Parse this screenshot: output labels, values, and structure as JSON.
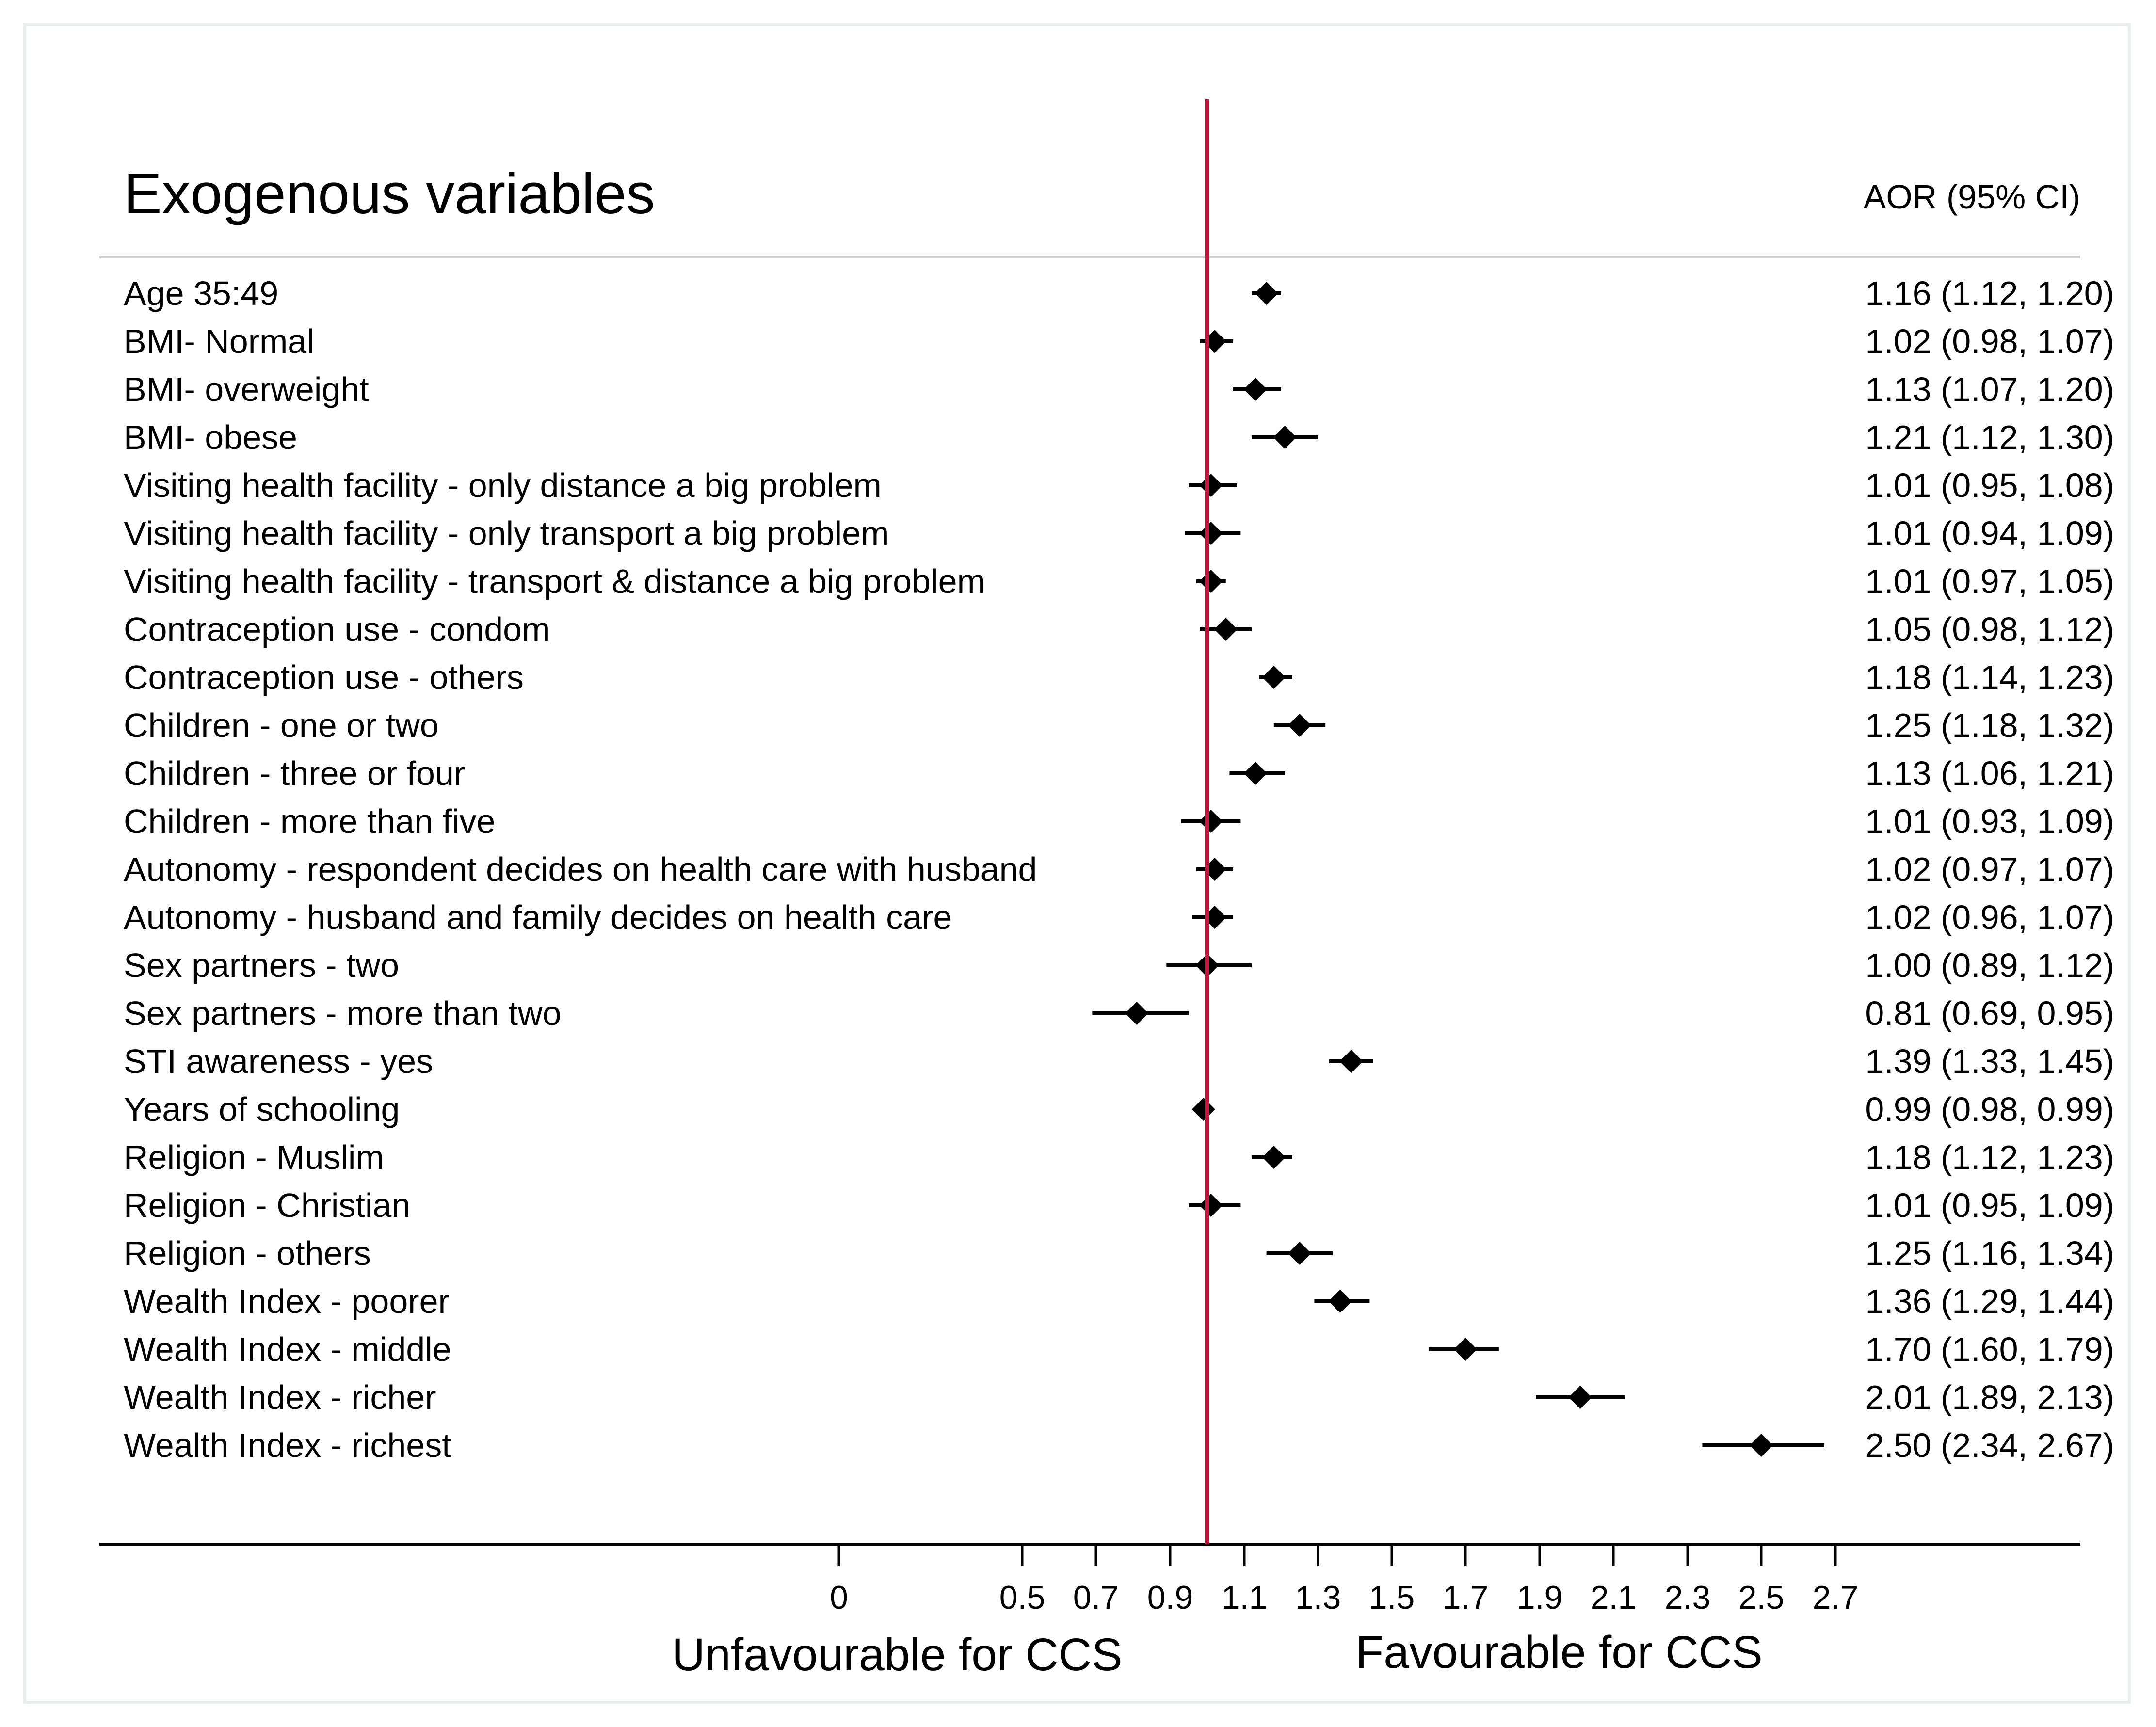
{
  "chart_data": {
    "type": "forest",
    "title": "Exogenous variables",
    "ci_header": "AOR (95% CI)",
    "reference_line": 1,
    "x_ticks": [
      "0",
      "0.5",
      "0.7",
      "0.9",
      "1.1",
      "1.3",
      "1.5",
      "1.7",
      "1.9",
      "2.1",
      "2.3",
      "2.5",
      "2.7"
    ],
    "x_tick_values": [
      0,
      0.5,
      0.7,
      0.9,
      1.1,
      1.3,
      1.5,
      1.7,
      1.9,
      2.1,
      2.3,
      2.5,
      2.7
    ],
    "xlabel_left": "Unfavourable for CCS",
    "xlabel_right": "Favourable for CCS",
    "colors": {
      "reference_line": "#c0143c",
      "marker": "#000000",
      "rule": "#cccccc"
    },
    "rows": [
      {
        "label": "Age 35:49",
        "estimate": 1.16,
        "lower": 1.12,
        "upper": 1.2,
        "ci_text": "1.16 (1.12, 1.20)"
      },
      {
        "label": "BMI- Normal",
        "estimate": 1.02,
        "lower": 0.98,
        "upper": 1.07,
        "ci_text": "1.02 (0.98, 1.07)"
      },
      {
        "label": "BMI- overweight",
        "estimate": 1.13,
        "lower": 1.07,
        "upper": 1.2,
        "ci_text": "1.13 (1.07, 1.20)"
      },
      {
        "label": "BMI- obese",
        "estimate": 1.21,
        "lower": 1.12,
        "upper": 1.3,
        "ci_text": "1.21 (1.12, 1.30)"
      },
      {
        "label": "Visiting health facility - only distance a big problem",
        "estimate": 1.01,
        "lower": 0.95,
        "upper": 1.08,
        "ci_text": "1.01 (0.95, 1.08)"
      },
      {
        "label": "Visiting health facility - only transport a big problem",
        "estimate": 1.01,
        "lower": 0.94,
        "upper": 1.09,
        "ci_text": "1.01 (0.94, 1.09)"
      },
      {
        "label": "Visiting health facility - transport & distance a big problem",
        "estimate": 1.01,
        "lower": 0.97,
        "upper": 1.05,
        "ci_text": "1.01 (0.97, 1.05)"
      },
      {
        "label": "Contraception use - condom",
        "estimate": 1.05,
        "lower": 0.98,
        "upper": 1.12,
        "ci_text": "1.05 (0.98, 1.12)"
      },
      {
        "label": "Contraception use - others",
        "estimate": 1.18,
        "lower": 1.14,
        "upper": 1.23,
        "ci_text": "1.18 (1.14, 1.23)"
      },
      {
        "label": "Children - one or two",
        "estimate": 1.25,
        "lower": 1.18,
        "upper": 1.32,
        "ci_text": "1.25 (1.18, 1.32)"
      },
      {
        "label": "Children - three or four",
        "estimate": 1.13,
        "lower": 1.06,
        "upper": 1.21,
        "ci_text": "1.13 (1.06, 1.21)"
      },
      {
        "label": "Children - more than five",
        "estimate": 1.01,
        "lower": 0.93,
        "upper": 1.09,
        "ci_text": "1.01 (0.93, 1.09)"
      },
      {
        "label": "Autonomy - respondent decides on health care with husband",
        "estimate": 1.02,
        "lower": 0.97,
        "upper": 1.07,
        "ci_text": "1.02 (0.97, 1.07)"
      },
      {
        "label": "Autonomy - husband and family decides on health care",
        "estimate": 1.02,
        "lower": 0.96,
        "upper": 1.07,
        "ci_text": "1.02 (0.96, 1.07)"
      },
      {
        "label": "Sex partners - two",
        "estimate": 1.0,
        "lower": 0.89,
        "upper": 1.12,
        "ci_text": "1.00 (0.89, 1.12)"
      },
      {
        "label": "Sex partners - more than two",
        "estimate": 0.81,
        "lower": 0.69,
        "upper": 0.95,
        "ci_text": "0.81 (0.69, 0.95)"
      },
      {
        "label": "STI awareness - yes",
        "estimate": 1.39,
        "lower": 1.33,
        "upper": 1.45,
        "ci_text": "1.39 (1.33, 1.45)"
      },
      {
        "label": "Years of schooling",
        "estimate": 0.99,
        "lower": 0.98,
        "upper": 0.99,
        "ci_text": "0.99 (0.98, 0.99)"
      },
      {
        "label": "Religion - Muslim",
        "estimate": 1.18,
        "lower": 1.12,
        "upper": 1.23,
        "ci_text": "1.18 (1.12, 1.23)"
      },
      {
        "label": "Religion - Christian",
        "estimate": 1.01,
        "lower": 0.95,
        "upper": 1.09,
        "ci_text": "1.01 (0.95, 1.09)"
      },
      {
        "label": "Religion - others",
        "estimate": 1.25,
        "lower": 1.16,
        "upper": 1.34,
        "ci_text": "1.25 (1.16, 1.34)"
      },
      {
        "label": "Wealth Index - poorer",
        "estimate": 1.36,
        "lower": 1.29,
        "upper": 1.44,
        "ci_text": "1.36 (1.29, 1.44)"
      },
      {
        "label": "Wealth Index - middle",
        "estimate": 1.7,
        "lower": 1.6,
        "upper": 1.79,
        "ci_text": "1.70 (1.60, 1.79)"
      },
      {
        "label": "Wealth Index - richer",
        "estimate": 2.01,
        "lower": 1.89,
        "upper": 2.13,
        "ci_text": "2.01 (1.89, 2.13)"
      },
      {
        "label": "Wealth Index - richest",
        "estimate": 2.5,
        "lower": 2.34,
        "upper": 2.67,
        "ci_text": "2.50 (2.34, 2.67)"
      }
    ]
  }
}
